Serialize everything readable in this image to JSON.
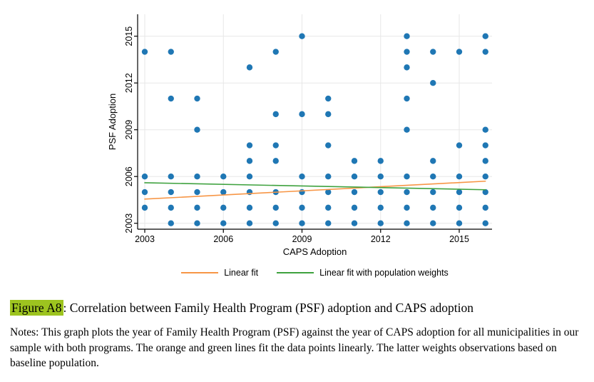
{
  "caption": {
    "label": "Figure A8",
    "text": ": Correlation between Family Health Program (PSF) adoption and CAPS adoption"
  },
  "notes": {
    "text": "Notes: This graph plots the year of Family Health Program (PSF) against the year of CAPS adoption for all municipalities in our sample with both programs. The orange and green lines fit the data points linearly. The latter weights observations based on baseline population."
  },
  "colors": {
    "highlight": "#9dc41f",
    "point": "#1f77b4",
    "linear_fit": "#f79646",
    "weighted_fit": "#3fa23f",
    "grid": "#e7e7e7",
    "axis": "#000000",
    "text": "#000000"
  },
  "chart_data": {
    "type": "scatter",
    "title": "",
    "xlabel": "CAPS Adoption",
    "ylabel": "PSF Adoption",
    "x_ticks": [
      2003,
      2006,
      2009,
      2012,
      2015
    ],
    "y_ticks": [
      2003,
      2006,
      2009,
      2012,
      2015
    ],
    "xlim": [
      2002.7,
      2016.3
    ],
    "ylim": [
      2002.6,
      2016.4
    ],
    "grid": true,
    "legend_position": "bottom",
    "points": [
      [
        2004,
        2003
      ],
      [
        2005,
        2003
      ],
      [
        2006,
        2003
      ],
      [
        2007,
        2003
      ],
      [
        2008,
        2003
      ],
      [
        2009,
        2003
      ],
      [
        2010,
        2003
      ],
      [
        2011,
        2003
      ],
      [
        2012,
        2003
      ],
      [
        2013,
        2003
      ],
      [
        2014,
        2003
      ],
      [
        2015,
        2003
      ],
      [
        2016,
        2003
      ],
      [
        2003,
        2004
      ],
      [
        2004,
        2004
      ],
      [
        2005,
        2004
      ],
      [
        2006,
        2004
      ],
      [
        2007,
        2004
      ],
      [
        2008,
        2004
      ],
      [
        2009,
        2004
      ],
      [
        2010,
        2004
      ],
      [
        2011,
        2004
      ],
      [
        2012,
        2004
      ],
      [
        2013,
        2004
      ],
      [
        2014,
        2004
      ],
      [
        2015,
        2004
      ],
      [
        2016,
        2004
      ],
      [
        2003,
        2005
      ],
      [
        2004,
        2005
      ],
      [
        2005,
        2005
      ],
      [
        2006,
        2005
      ],
      [
        2007,
        2005
      ],
      [
        2008,
        2005
      ],
      [
        2009,
        2005
      ],
      [
        2010,
        2005
      ],
      [
        2011,
        2005
      ],
      [
        2012,
        2005
      ],
      [
        2013,
        2005
      ],
      [
        2014,
        2005
      ],
      [
        2015,
        2005
      ],
      [
        2016,
        2005
      ],
      [
        2003,
        2006
      ],
      [
        2004,
        2006
      ],
      [
        2005,
        2006
      ],
      [
        2006,
        2006
      ],
      [
        2007,
        2006
      ],
      [
        2009,
        2006
      ],
      [
        2010,
        2006
      ],
      [
        2011,
        2006
      ],
      [
        2012,
        2006
      ],
      [
        2013,
        2006
      ],
      [
        2014,
        2006
      ],
      [
        2015,
        2006
      ],
      [
        2016,
        2006
      ],
      [
        2007,
        2007
      ],
      [
        2008,
        2007
      ],
      [
        2011,
        2007
      ],
      [
        2012,
        2007
      ],
      [
        2014,
        2007
      ],
      [
        2016,
        2007
      ],
      [
        2007,
        2008
      ],
      [
        2008,
        2008
      ],
      [
        2010,
        2008
      ],
      [
        2015,
        2008
      ],
      [
        2016,
        2008
      ],
      [
        2005,
        2009
      ],
      [
        2013,
        2009
      ],
      [
        2016,
        2009
      ],
      [
        2008,
        2010
      ],
      [
        2009,
        2010
      ],
      [
        2010,
        2010
      ],
      [
        2004,
        2011
      ],
      [
        2005,
        2011
      ],
      [
        2010,
        2011
      ],
      [
        2013,
        2011
      ],
      [
        2014,
        2012
      ],
      [
        2007,
        2013
      ],
      [
        2013,
        2013
      ],
      [
        2003,
        2014
      ],
      [
        2004,
        2014
      ],
      [
        2008,
        2014
      ],
      [
        2013,
        2014
      ],
      [
        2014,
        2014
      ],
      [
        2015,
        2014
      ],
      [
        2016,
        2014
      ],
      [
        2009,
        2015
      ],
      [
        2013,
        2015
      ],
      [
        2016,
        2015
      ]
    ],
    "series": [
      {
        "name": "Linear fit",
        "type": "line",
        "color": "#f79646",
        "x": [
          2003,
          2016
        ],
        "y": [
          2004.55,
          2005.7
        ]
      },
      {
        "name": "Linear fit with population weights",
        "type": "line",
        "color": "#3fa23f",
        "x": [
          2003,
          2016
        ],
        "y": [
          2005.6,
          2005.15
        ]
      }
    ]
  }
}
